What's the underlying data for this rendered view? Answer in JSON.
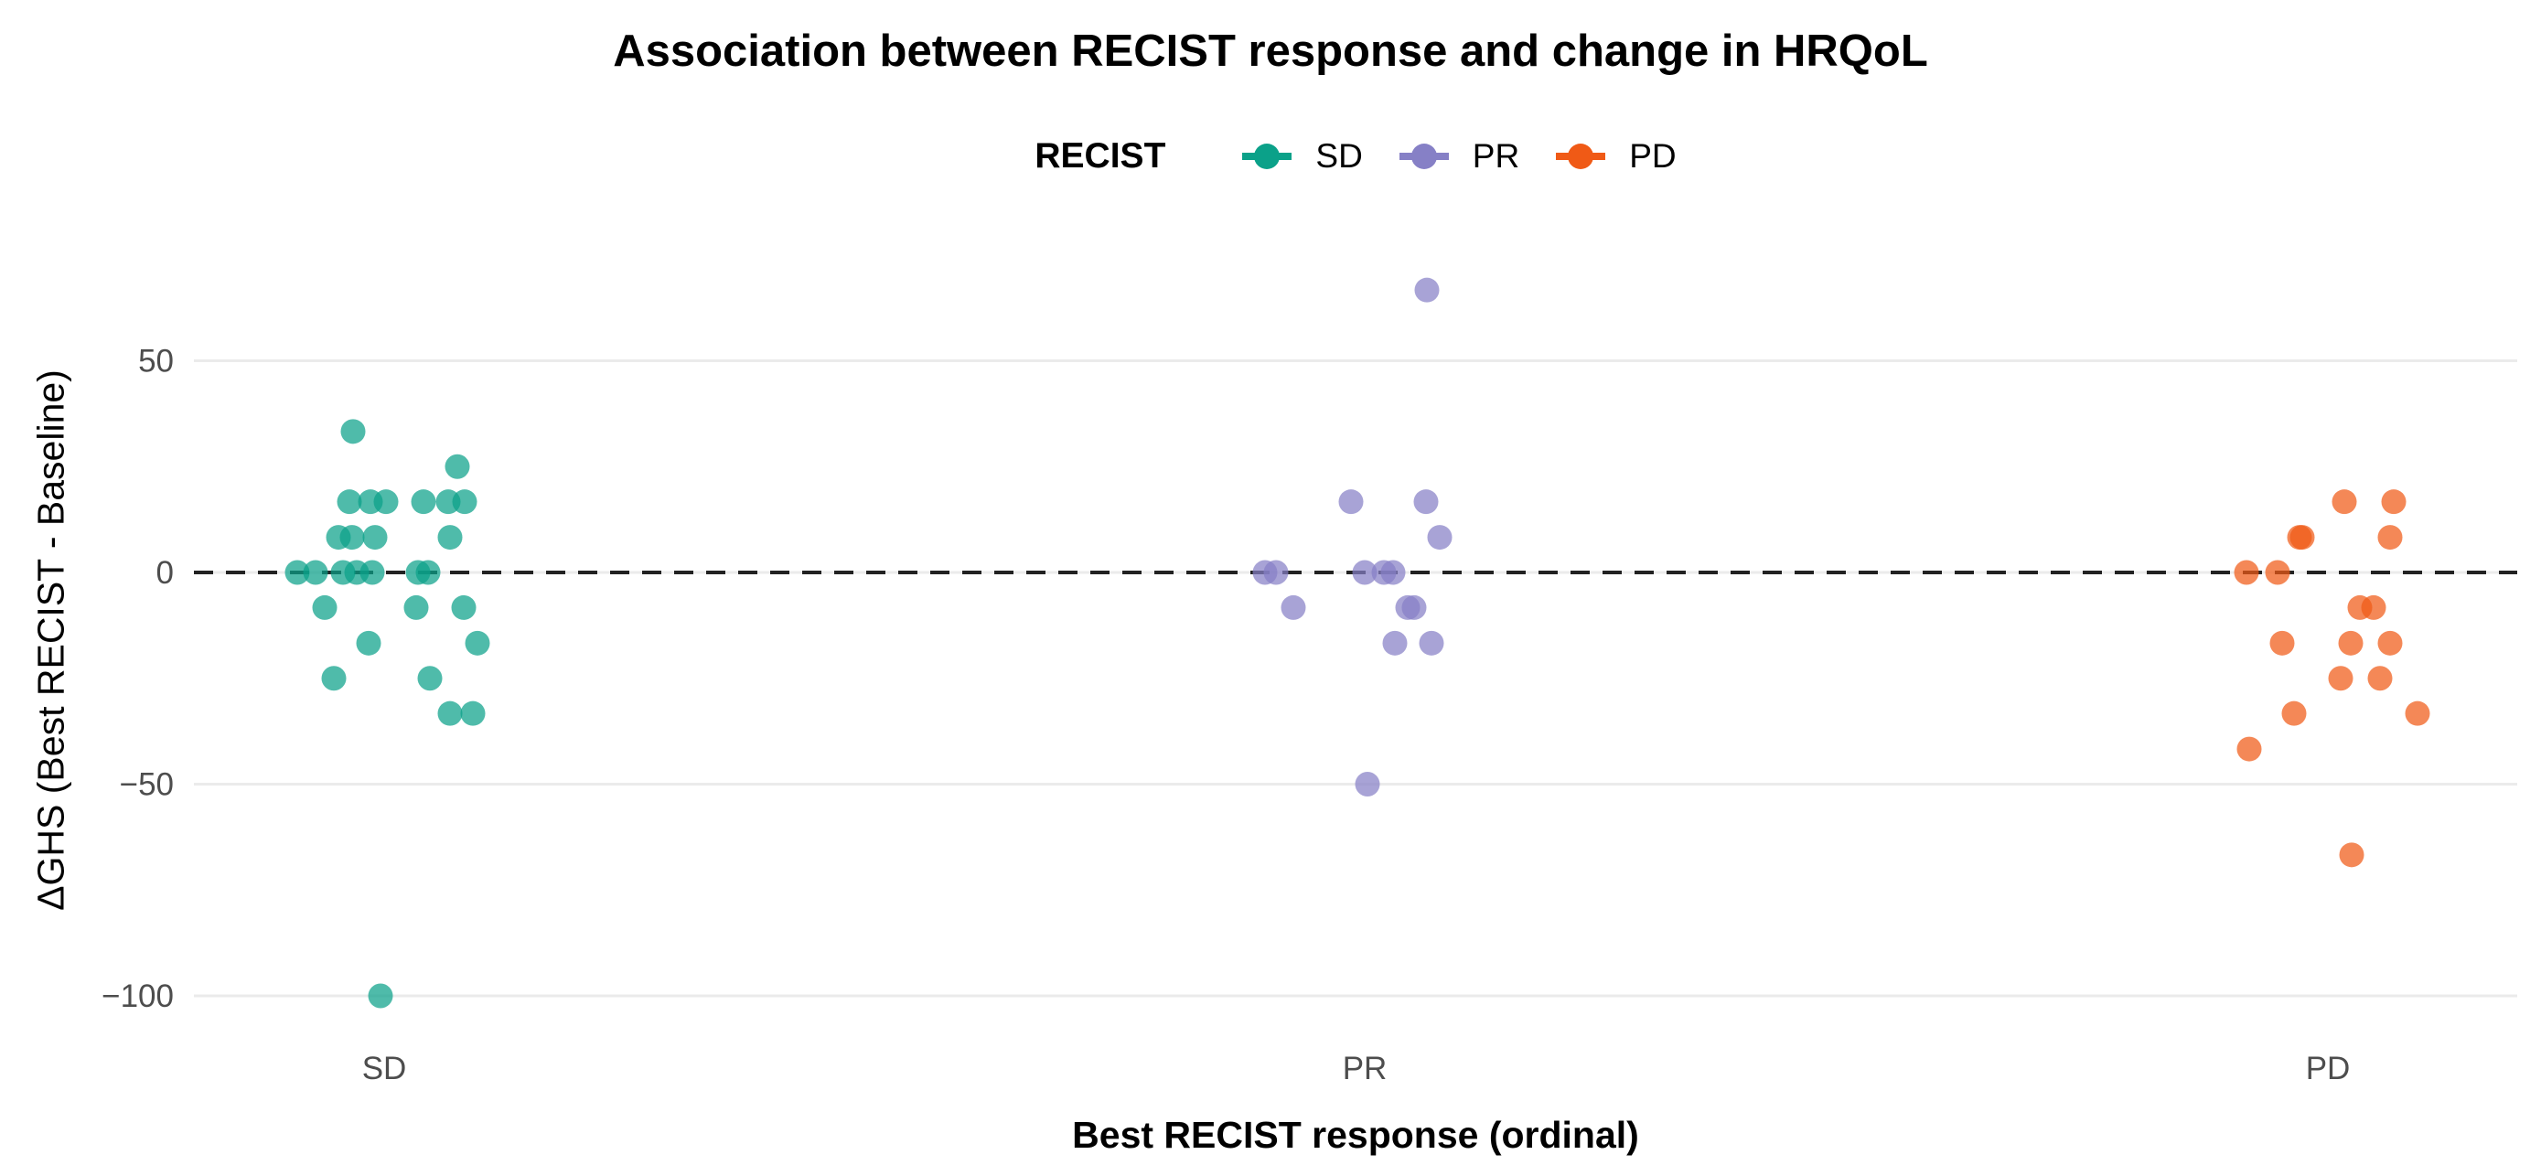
{
  "title": "Association between RECIST response and change in HRQoL",
  "legend": {
    "title": "RECIST",
    "items": [
      {
        "label": "SD",
        "color": "#0BA189"
      },
      {
        "label": "PR",
        "color": "#8680C6"
      },
      {
        "label": "PD",
        "color": "#F05A16"
      }
    ]
  },
  "x_axis": {
    "title": "Best RECIST response (ordinal)",
    "categories": [
      "SD",
      "PR",
      "PD"
    ]
  },
  "y_axis": {
    "title": "ΔGHS (Best RECIST - Baseline)",
    "ticks": [
      50,
      0,
      -50,
      -100
    ],
    "tick_labels": [
      "50",
      "0",
      "−50",
      "−100"
    ]
  },
  "chart_data": {
    "type": "scatter",
    "subtype": "jittered strip plot by category",
    "title": "Association between RECIST response and change in HRQoL",
    "xlabel": "Best RECIST response (ordinal)",
    "ylabel": "ΔGHS (Best RECIST - Baseline)",
    "categories": [
      "SD",
      "PR",
      "PD"
    ],
    "ylim": [
      -112,
      75
    ],
    "grid": "horizontal only",
    "legend_position": "top center",
    "reference_line": {
      "y": 0,
      "style": "dashed",
      "color": "#222222"
    },
    "point_opacity": 0.72,
    "series": [
      {
        "name": "SD",
        "color": "#0BA189",
        "values": [
          33.3,
          25,
          16.7,
          16.7,
          16.7,
          16.7,
          16.7,
          16.7,
          8.3,
          8.3,
          8.3,
          8.3,
          0,
          0,
          0,
          0,
          0,
          0,
          0,
          -8.3,
          -8.3,
          -8.3,
          -16.7,
          -16.7,
          -25,
          -25,
          -33.3,
          -33.3,
          -100
        ],
        "points": [
          {
            "v": 33.3,
            "dx": -34
          },
          {
            "v": 25,
            "dx": 80
          },
          {
            "v": 16.7,
            "dx": -38
          },
          {
            "v": 16.7,
            "dx": -15
          },
          {
            "v": 16.7,
            "dx": 2
          },
          {
            "v": 16.7,
            "dx": 43
          },
          {
            "v": 16.7,
            "dx": 70
          },
          {
            "v": 16.7,
            "dx": 88
          },
          {
            "v": 8.3,
            "dx": -50
          },
          {
            "v": 8.3,
            "dx": -35
          },
          {
            "v": 8.3,
            "dx": -10
          },
          {
            "v": 8.3,
            "dx": 72
          },
          {
            "v": 0,
            "dx": -95
          },
          {
            "v": 0,
            "dx": -75
          },
          {
            "v": 0,
            "dx": -45
          },
          {
            "v": 0,
            "dx": -30
          },
          {
            "v": 0,
            "dx": -13
          },
          {
            "v": 0,
            "dx": 37
          },
          {
            "v": 0,
            "dx": 48
          },
          {
            "v": -8.3,
            "dx": -65
          },
          {
            "v": -8.3,
            "dx": 35
          },
          {
            "v": -8.3,
            "dx": 87
          },
          {
            "v": -16.7,
            "dx": -17
          },
          {
            "v": -16.7,
            "dx": 102
          },
          {
            "v": -25,
            "dx": -55
          },
          {
            "v": -25,
            "dx": 50
          },
          {
            "v": -33.3,
            "dx": 72
          },
          {
            "v": -33.3,
            "dx": 97
          },
          {
            "v": -100,
            "dx": -4
          }
        ]
      },
      {
        "name": "PR",
        "color": "#8680C6",
        "values": [
          66.7,
          16.7,
          16.7,
          8.3,
          0,
          0,
          0,
          0,
          0,
          -8.3,
          -8.3,
          -8.3,
          -16.7,
          -16.7,
          -50
        ],
        "points": [
          {
            "v": 66.7,
            "dx": 68
          },
          {
            "v": 16.7,
            "dx": -15
          },
          {
            "v": 16.7,
            "dx": 67
          },
          {
            "v": 8.3,
            "dx": 82
          },
          {
            "v": 0,
            "dx": -109
          },
          {
            "v": 0,
            "dx": -97
          },
          {
            "v": 0,
            "dx": 0
          },
          {
            "v": 0,
            "dx": 21
          },
          {
            "v": 0,
            "dx": 31
          },
          {
            "v": -8.3,
            "dx": -78
          },
          {
            "v": -8.3,
            "dx": 47
          },
          {
            "v": -8.3,
            "dx": 54
          },
          {
            "v": -16.7,
            "dx": 33
          },
          {
            "v": -16.7,
            "dx": 73
          },
          {
            "v": -50,
            "dx": 3
          }
        ]
      },
      {
        "name": "PD",
        "color": "#F05A16",
        "values": [
          16.7,
          16.7,
          8.3,
          8.3,
          8.3,
          0,
          0,
          -8.3,
          -8.3,
          -16.7,
          -16.7,
          -16.7,
          -25,
          -25,
          -33.3,
          -33.3,
          -41.7,
          -66.7
        ],
        "points": [
          {
            "v": 16.7,
            "dx": 18
          },
          {
            "v": 16.7,
            "dx": 72
          },
          {
            "v": 8.3,
            "dx": -31
          },
          {
            "v": 8.3,
            "dx": -28
          },
          {
            "v": 8.3,
            "dx": 68
          },
          {
            "v": 0,
            "dx": -89
          },
          {
            "v": 0,
            "dx": -55
          },
          {
            "v": -8.3,
            "dx": 35
          },
          {
            "v": -8.3,
            "dx": 50
          },
          {
            "v": -16.7,
            "dx": -50
          },
          {
            "v": -16.7,
            "dx": 25
          },
          {
            "v": -16.7,
            "dx": 68
          },
          {
            "v": -25,
            "dx": 14
          },
          {
            "v": -25,
            "dx": 57
          },
          {
            "v": -33.3,
            "dx": -37
          },
          {
            "v": -33.3,
            "dx": 98
          },
          {
            "v": -41.7,
            "dx": -86
          },
          {
            "v": -66.7,
            "dx": 26
          }
        ]
      }
    ]
  }
}
